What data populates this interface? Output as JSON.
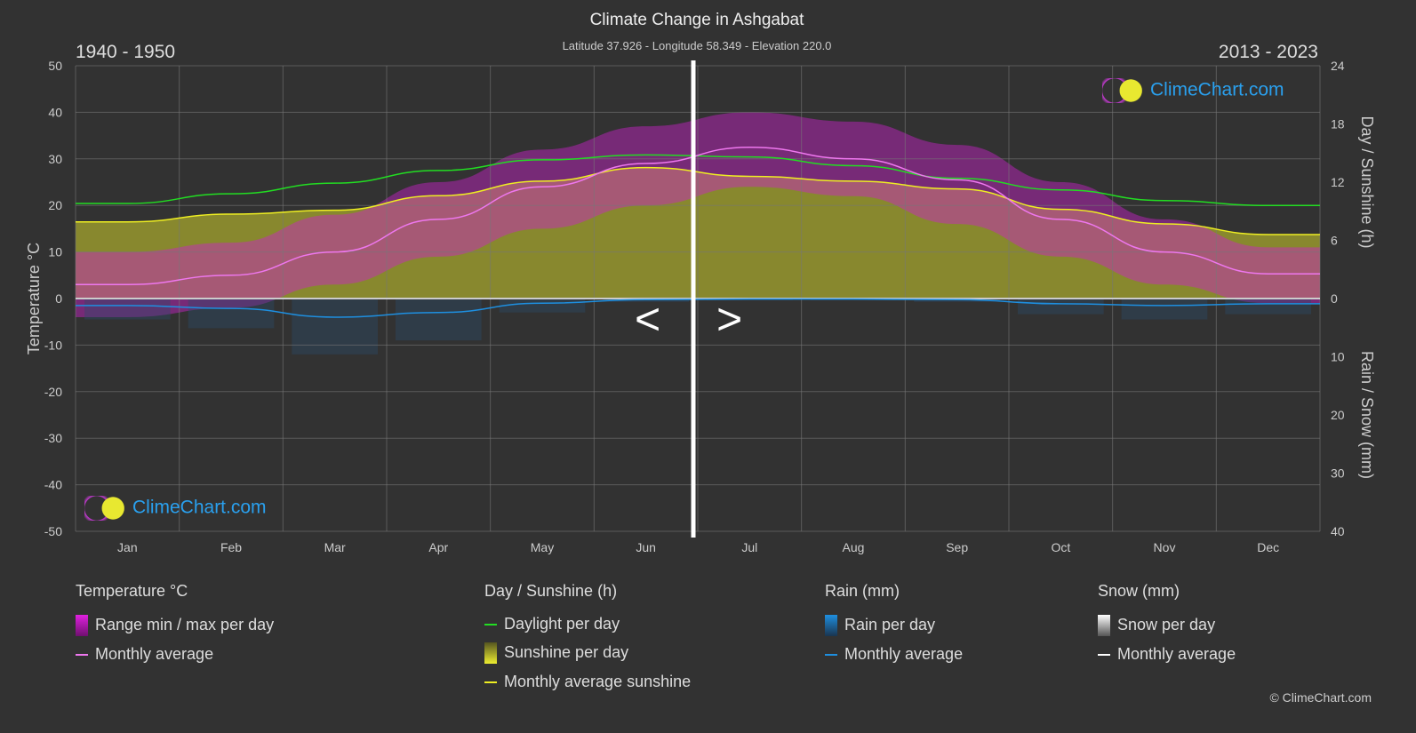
{
  "title": "Climate Change in Ashgabat",
  "subtitle": "Latitude 37.926 - Longitude 58.349 - Elevation 220.0",
  "period_left": "1940 - 1950",
  "period_right": "2013 - 2023",
  "nav": {
    "prev": "<",
    "next": ">"
  },
  "logo_text": "ClimeChart.com",
  "copyright": "© ClimeChart.com",
  "colors": {
    "background": "#323232",
    "temp_avg": "#ee77ee",
    "range": "#cc22cc",
    "daylight": "#22dd22",
    "sunshine": "#a5a52e",
    "sunshine_avg": "#eeee22",
    "rain": "#1e8fe0",
    "snow": "#ffffff"
  },
  "chart_data": {
    "type": "line",
    "title": "Climate Change in Ashgabat",
    "categories": [
      "Jan",
      "Feb",
      "Mar",
      "Apr",
      "May",
      "Jun",
      "Jul",
      "Aug",
      "Sep",
      "Oct",
      "Nov",
      "Dec"
    ],
    "y_left": {
      "label": "Temperature °C",
      "range": [
        -50,
        50
      ],
      "ticks": [
        "50",
        "40",
        "30",
        "20",
        "10",
        "0",
        "-10",
        "-20",
        "-30",
        "-40",
        "-50"
      ]
    },
    "y_right_top": {
      "label": "Day / Sunshine (h)",
      "range": [
        0,
        24
      ],
      "ticks": [
        "24",
        "18",
        "12",
        "6",
        "0"
      ]
    },
    "y_right_bottom": {
      "label": "Rain / Snow (mm)",
      "range": [
        0,
        40
      ],
      "ticks": [
        "0",
        "10",
        "20",
        "30",
        "40"
      ]
    },
    "grid": true,
    "series": [
      {
        "name": "Monthly average",
        "group": "temperature",
        "values": [
          3,
          5,
          10,
          17,
          24,
          29,
          32.5,
          30,
          25.5,
          17,
          10,
          5.3
        ]
      },
      {
        "name": "Range max per day",
        "group": "temperature",
        "values": [
          10,
          12,
          18,
          25,
          32,
          37,
          40,
          38,
          33,
          25,
          17,
          11
        ]
      },
      {
        "name": "Range min per day",
        "group": "temperature",
        "values": [
          -4,
          -2,
          3,
          9,
          15,
          20,
          24,
          22,
          16,
          9,
          3,
          -1
        ]
      },
      {
        "name": "Daylight per day",
        "group": "sun",
        "values": [
          9.8,
          10.8,
          11.9,
          13.2,
          14.3,
          14.8,
          14.6,
          13.7,
          12.4,
          11.2,
          10.1,
          9.6
        ]
      },
      {
        "name": "Monthly average sunshine",
        "group": "sun",
        "values": [
          7.9,
          8.7,
          9.1,
          10.6,
          12.1,
          13.5,
          12.6,
          12.1,
          11.3,
          9.2,
          7.7,
          6.6
        ]
      },
      {
        "name": "Rain monthly average",
        "group": "rain",
        "values": [
          1.2,
          1.7,
          3.2,
          2.4,
          0.8,
          0.2,
          0.1,
          0.1,
          0.2,
          0.9,
          1.2,
          0.9
        ]
      }
    ]
  },
  "legend": {
    "temperature": {
      "title": "Temperature °C",
      "items": [
        "Range min / max per day",
        "Monthly average"
      ]
    },
    "sun": {
      "title": "Day / Sunshine (h)",
      "items": [
        "Daylight per day",
        "Sunshine per day",
        "Monthly average sunshine"
      ]
    },
    "rain": {
      "title": "Rain (mm)",
      "items": [
        "Rain per day",
        "Monthly average"
      ]
    },
    "snow": {
      "title": "Snow (mm)",
      "items": [
        "Snow per day",
        "Monthly average"
      ]
    }
  }
}
